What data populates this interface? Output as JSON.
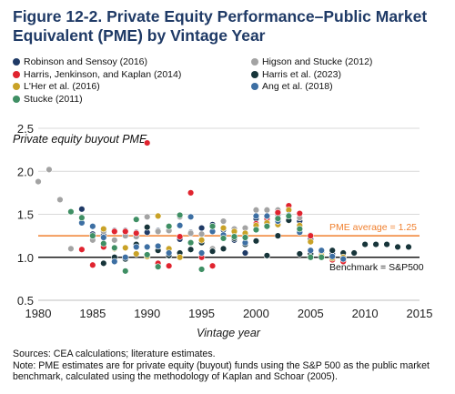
{
  "figure": {
    "title": "Figure 12-2. Private Equity Performance–Public Market Equivalent (PME) by Vintage Year",
    "source": "Sources: CEA calculations; literature estimates.",
    "note": "Note: PME estimates are for private equity (buyout) funds using the S&P 500 as the public market benchmark, calculated using the methodology of  Kaplan and Schoar (2005)."
  },
  "chart_data": {
    "type": "scatter",
    "ylabel": "Private equity buyout PME",
    "xlabel": "Vintage year",
    "xlim": [
      1980,
      2015
    ],
    "ylim": [
      0.5,
      2.5
    ],
    "xticks": [
      1980,
      1985,
      1990,
      1995,
      2000,
      2005,
      2010,
      2015
    ],
    "yticks": [
      0.5,
      1.0,
      1.5,
      2.0,
      2.5
    ],
    "grid": "horizontal",
    "legend_position": "top",
    "reference_lines": [
      {
        "label": "PME average = 1.25",
        "y": 1.25,
        "color": "#f07f2d"
      },
      {
        "label": "Benchmark = S&P500",
        "y": 1.0,
        "color": "#1a1a1a"
      }
    ],
    "series": [
      {
        "name": "Robinson and Sensoy (2016)",
        "color": "#1f3a66",
        "points": [
          [
            1984,
            1.56
          ],
          [
            1985,
            1.27
          ],
          [
            1986,
            1.26
          ],
          [
            1987,
            1.31
          ],
          [
            1988,
            1.31
          ],
          [
            1989,
            1.29
          ],
          [
            1990,
            1.29
          ],
          [
            1991,
            1.31
          ],
          [
            1992,
            1.31
          ],
          [
            1993,
            1.21
          ],
          [
            1994,
            1.29
          ],
          [
            1995,
            1.34
          ],
          [
            1996,
            1.38
          ],
          [
            1997,
            1.32
          ],
          [
            1998,
            1.2
          ],
          [
            1999,
            1.05
          ],
          [
            2000,
            1.45
          ],
          [
            2001,
            1.42
          ],
          [
            2002,
            1.5
          ],
          [
            2003,
            1.58
          ],
          [
            2004,
            1.42
          ],
          [
            2005,
            1.21
          ],
          [
            2006,
            1.05
          ],
          [
            2007,
            1.04
          ],
          [
            2008,
            0.97
          ]
        ]
      },
      {
        "name": "Higson and Stucke (2012)",
        "color": "#a3a3a3",
        "points": [
          [
            1980,
            1.88
          ],
          [
            1981,
            2.02
          ],
          [
            1982,
            1.67
          ],
          [
            1983,
            1.1
          ],
          [
            1985,
            1.2
          ],
          [
            1986,
            1.3
          ],
          [
            1987,
            1.2
          ],
          [
            1988,
            1.25
          ],
          [
            1989,
            1.24
          ],
          [
            1990,
            1.47
          ],
          [
            1991,
            1.3
          ],
          [
            1992,
            1.31
          ],
          [
            1993,
            1.47
          ],
          [
            1994,
            1.28
          ],
          [
            1995,
            1.27
          ],
          [
            1996,
            1.1
          ],
          [
            1997,
            1.42
          ],
          [
            1998,
            1.33
          ],
          [
            1999,
            1.34
          ],
          [
            2000,
            1.55
          ],
          [
            2001,
            1.55
          ],
          [
            2002,
            1.55
          ],
          [
            2003,
            1.57
          ],
          [
            2004,
            1.46
          ],
          [
            2005,
            1.26
          ]
        ]
      },
      {
        "name": "Harris, Jenkinson, and Kaplan (2014)",
        "color": "#e0242f",
        "points": [
          [
            1984,
            1.09
          ],
          [
            1985,
            0.91
          ],
          [
            1986,
            1.12
          ],
          [
            1987,
            1.3
          ],
          [
            1988,
            1.3
          ],
          [
            1989,
            1.28
          ],
          [
            1990,
            2.33
          ],
          [
            1991,
            0.93
          ],
          [
            1992,
            0.9
          ],
          [
            1993,
            1.24
          ],
          [
            1994,
            1.75
          ],
          [
            1995,
            1.0
          ],
          [
            1996,
            0.9
          ],
          [
            2000,
            1.39
          ],
          [
            2001,
            1.45
          ],
          [
            2002,
            1.52
          ],
          [
            2003,
            1.6
          ],
          [
            2004,
            1.51
          ],
          [
            2005,
            1.25
          ],
          [
            2006,
            1.01
          ],
          [
            2007,
            0.97
          ],
          [
            2008,
            0.95
          ]
        ]
      },
      {
        "name": "Harris et al. (2023)",
        "color": "#17353a",
        "points": [
          [
            1986,
            0.93
          ],
          [
            1987,
            1.0
          ],
          [
            1988,
            0.98
          ],
          [
            1989,
            1.15
          ],
          [
            1990,
            1.35
          ],
          [
            1991,
            1.08
          ],
          [
            1992,
            1.02
          ],
          [
            1993,
            1.05
          ],
          [
            1994,
            1.09
          ],
          [
            1995,
            1.17
          ],
          [
            1996,
            1.07
          ],
          [
            1997,
            1.1
          ],
          [
            1998,
            1.22
          ],
          [
            1999,
            1.15
          ],
          [
            2000,
            1.19
          ],
          [
            2001,
            1.02
          ],
          [
            2002,
            1.25
          ],
          [
            2003,
            1.43
          ],
          [
            2004,
            1.04
          ],
          [
            2005,
            1.04
          ],
          [
            2006,
            1.03
          ],
          [
            2007,
            1.08
          ],
          [
            2008,
            1.05
          ],
          [
            2009,
            1.05
          ],
          [
            2010,
            1.15
          ],
          [
            2011,
            1.15
          ],
          [
            2012,
            1.15
          ],
          [
            2013,
            1.12
          ],
          [
            2014,
            1.12
          ]
        ]
      },
      {
        "name": "L'Her et al. (2016)",
        "color": "#c9a227",
        "points": [
          [
            1986,
            1.33
          ],
          [
            1987,
            1.1
          ],
          [
            1988,
            1.11
          ],
          [
            1989,
            1.04
          ],
          [
            1990,
            1.01
          ],
          [
            1991,
            1.48
          ],
          [
            1992,
            1.1
          ],
          [
            1993,
            1.0
          ],
          [
            1994,
            1.47
          ],
          [
            1995,
            1.2
          ],
          [
            1996,
            1.3
          ],
          [
            1997,
            1.34
          ],
          [
            1998,
            1.3
          ],
          [
            1999,
            1.28
          ],
          [
            2000,
            1.37
          ],
          [
            2001,
            1.4
          ],
          [
            2002,
            1.38
          ],
          [
            2003,
            1.55
          ],
          [
            2004,
            1.37
          ],
          [
            2005,
            1.18
          ],
          [
            2006,
            1.02
          ],
          [
            2007,
            0.99
          ],
          [
            2008,
            1.0
          ]
        ]
      },
      {
        "name": "Ang et al. (2018)",
        "color": "#3d6fa3",
        "points": [
          [
            1984,
            1.4
          ],
          [
            1985,
            1.36
          ],
          [
            1986,
            1.23
          ],
          [
            1987,
            0.95
          ],
          [
            1988,
            1.0
          ],
          [
            1989,
            1.12
          ],
          [
            1990,
            1.12
          ],
          [
            1991,
            1.13
          ],
          [
            1992,
            1.05
          ],
          [
            1993,
            1.37
          ],
          [
            1994,
            1.47
          ],
          [
            1995,
            1.05
          ],
          [
            1996,
            1.3
          ],
          [
            1997,
            1.26
          ],
          [
            1998,
            1.24
          ],
          [
            1999,
            1.17
          ],
          [
            2000,
            1.48
          ],
          [
            2001,
            1.48
          ],
          [
            2002,
            1.42
          ],
          [
            2003,
            1.49
          ],
          [
            2004,
            1.29
          ],
          [
            2005,
            1.08
          ],
          [
            2006,
            1.08
          ],
          [
            2007,
            1.01
          ],
          [
            2008,
            0.98
          ]
        ]
      },
      {
        "name": "Stucke (2011)",
        "color": "#3f8f64",
        "points": [
          [
            1983,
            1.53
          ],
          [
            1984,
            1.46
          ],
          [
            1985,
            1.25
          ],
          [
            1986,
            1.16
          ],
          [
            1987,
            1.11
          ],
          [
            1988,
            0.84
          ],
          [
            1989,
            1.44
          ],
          [
            1990,
            1.03
          ],
          [
            1991,
            0.89
          ],
          [
            1992,
            1.36
          ],
          [
            1993,
            1.49
          ],
          [
            1994,
            1.17
          ],
          [
            1995,
            0.86
          ],
          [
            1996,
            1.36
          ],
          [
            1997,
            1.22
          ],
          [
            1998,
            1.24
          ],
          [
            1999,
            1.23
          ],
          [
            2000,
            1.32
          ],
          [
            2001,
            1.36
          ],
          [
            2002,
            1.45
          ],
          [
            2003,
            1.48
          ],
          [
            2004,
            1.33
          ],
          [
            2005,
            1.0
          ],
          [
            2006,
            1.0
          ]
        ]
      }
    ]
  }
}
